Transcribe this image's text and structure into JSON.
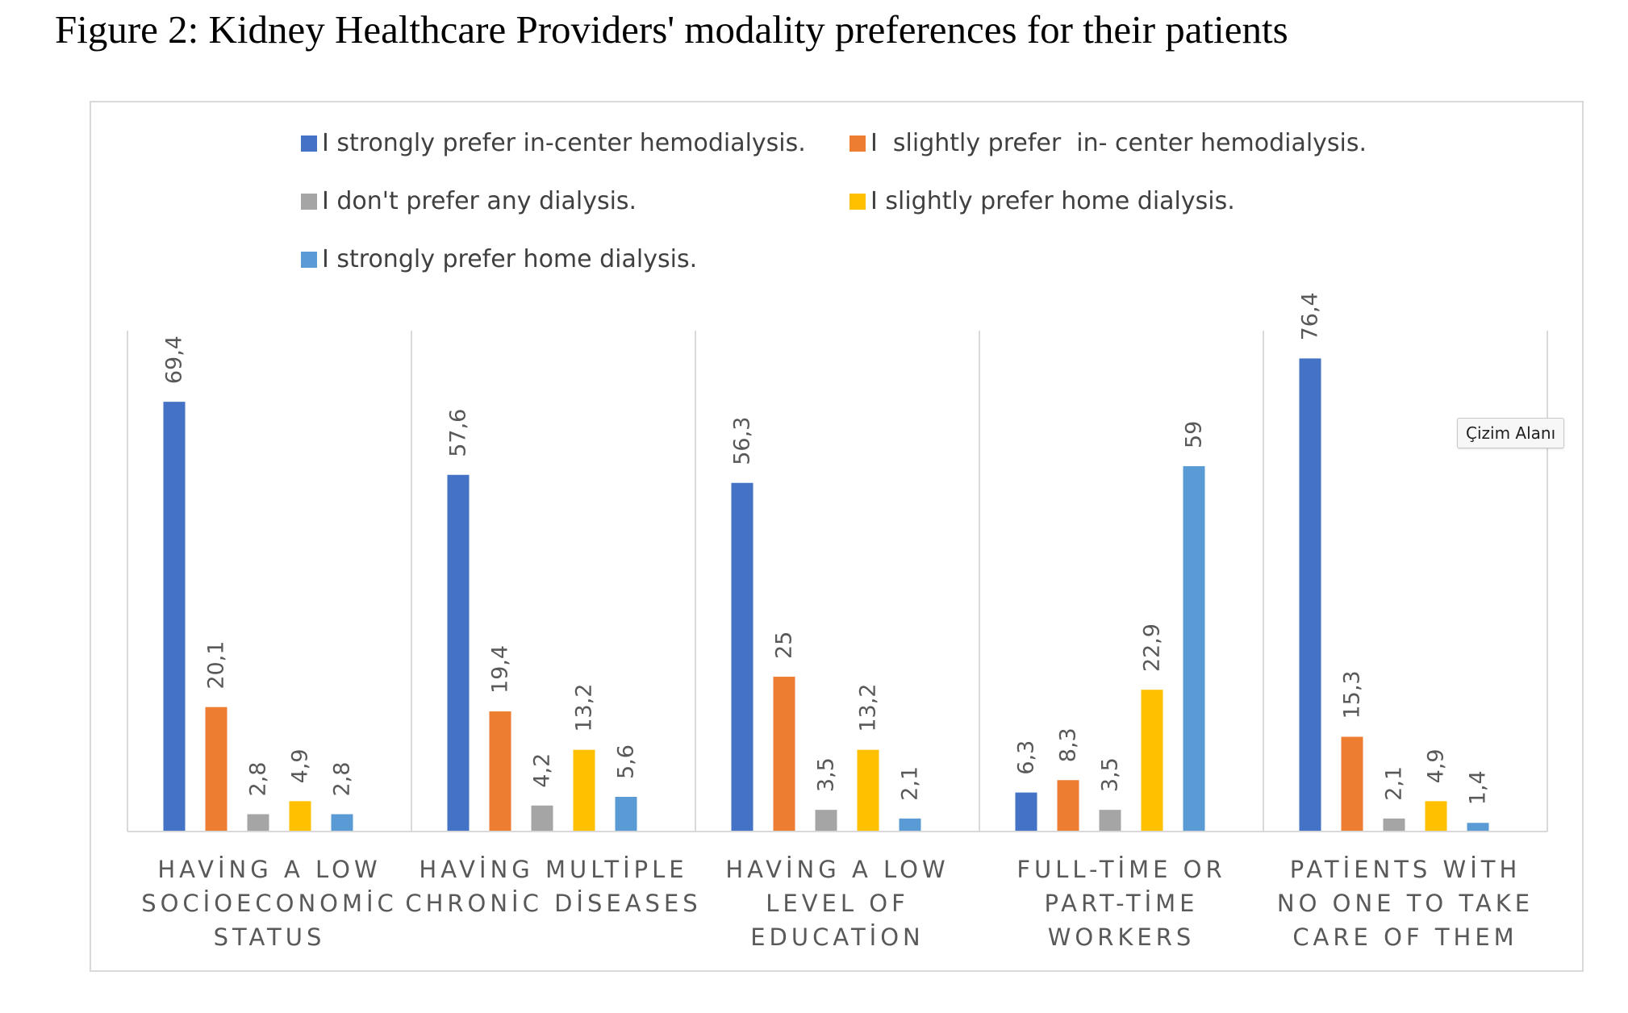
{
  "figure_title": "Figure 2: Kidney Healthcare Providers' modality preferences for their patients",
  "tooltip_text": "Çizim Alanı",
  "chart_data": {
    "type": "bar",
    "title": "",
    "xlabel": "",
    "ylabel": "",
    "ylim": [
      0,
      90
    ],
    "grid": false,
    "legend_position": "top",
    "category_lines": [
      [
        "HAVİNG A LOW",
        "SOCİOECONOMİC",
        "STATUS"
      ],
      [
        "HAVİNG MULTİPLE",
        "CHRONİC DİSEASES"
      ],
      [
        "HAVİNG A LOW",
        "LEVEL OF",
        "EDUCATİON"
      ],
      [
        "FULL-TİME OR",
        "PART-TİME",
        "WORKERS"
      ],
      [
        "PATİENTS WİTH",
        "NO ONE TO TAKE",
        "CARE OF THEM"
      ]
    ],
    "series": [
      {
        "name": "I strongly prefer in-center hemodialysis.",
        "color": "#4472c4",
        "values": [
          69.4,
          57.6,
          56.3,
          6.3,
          76.4
        ],
        "labels": [
          "69,4",
          "57,6",
          "56,3",
          "6,3",
          "76,4"
        ]
      },
      {
        "name": "I  slightly prefer  in- center hemodialysis.",
        "color": "#ed7d31",
        "values": [
          20.1,
          19.4,
          25,
          8.3,
          15.3
        ],
        "labels": [
          "20,1",
          "19,4",
          "25",
          "8,3",
          "15,3"
        ]
      },
      {
        "name": "I don't prefer any dialysis.",
        "color": "#a5a5a5",
        "values": [
          2.8,
          4.2,
          3.5,
          3.5,
          2.1
        ],
        "labels": [
          "2,8",
          "4,2",
          "3,5",
          "3,5",
          "2,1"
        ]
      },
      {
        "name": "I slightly prefer home dialysis.",
        "color": "#ffc000",
        "values": [
          4.9,
          13.2,
          13.2,
          22.9,
          4.9
        ],
        "labels": [
          "4,9",
          "13,2",
          "13,2",
          "22,9",
          "4,9"
        ]
      },
      {
        "name": "I strongly prefer home dialysis.",
        "color": "#5b9bd5",
        "values": [
          2.8,
          5.6,
          2.1,
          59,
          1.4
        ],
        "labels": [
          "2,8",
          "5,6",
          "2,1",
          "59",
          "1,4"
        ]
      }
    ]
  }
}
